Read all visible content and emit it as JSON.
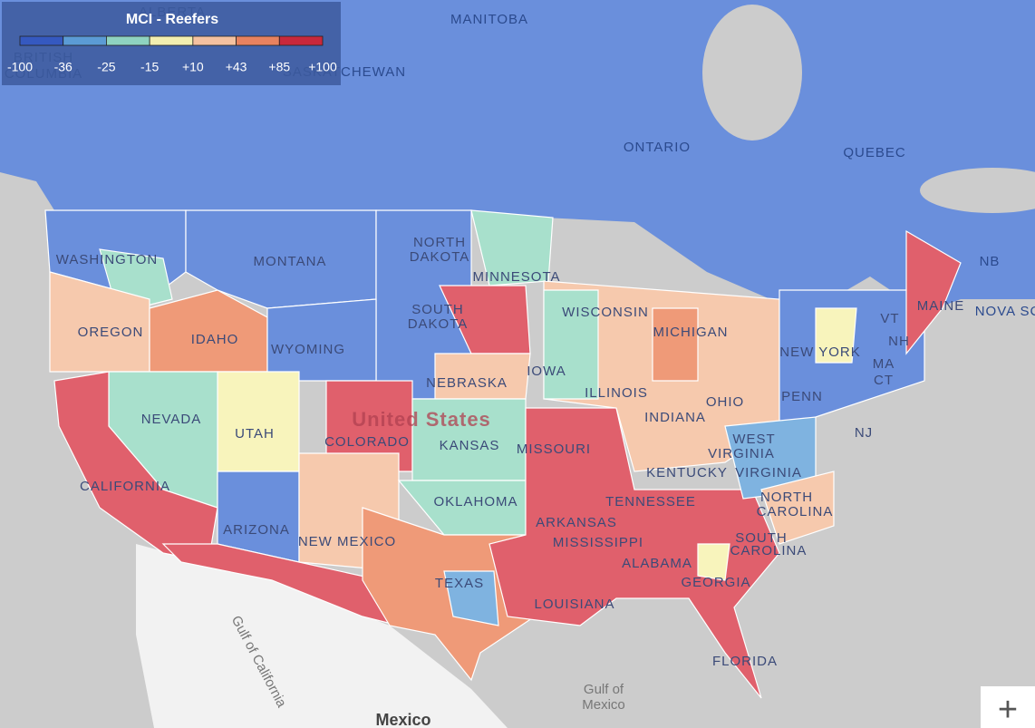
{
  "legend": {
    "title": "MCI - Reefers",
    "stops": [
      "-100",
      "-36",
      "-25",
      "-15",
      "+10",
      "+43",
      "+85",
      "+100"
    ],
    "colors": [
      "#3559c0",
      "#5b9bd5",
      "#8fd3c0",
      "#f3efb0",
      "#f4c1a0",
      "#e8825f",
      "#c9283b"
    ]
  },
  "map": {
    "labels": [
      "ALBERTA",
      "MANITOBA",
      "SASKATCHEWAN",
      "BRITISH",
      "COLUMBIA",
      "ONTARIO",
      "QUEBEC",
      "NB",
      "NOVA SC",
      "WASHINGTON",
      "MONTANA",
      "NORTH",
      "DAKOTA",
      "MINNESOTA",
      "SOUTH",
      "DAKOTA",
      "OREGON",
      "IDAHO",
      "WISCONSIN",
      "MICHIGAN",
      "WYOMING",
      "NEW YORK",
      "MAINE",
      "VT",
      "NH",
      "MA",
      "CT",
      "NEBRASKA",
      "IOWA",
      "ILLINOIS",
      "PENN",
      "OHIO",
      "INDIANA",
      "NJ",
      "NEVADA",
      "UTAH",
      "COLORADO",
      "KANSAS",
      "MISSOURI",
      "WEST",
      "VIRGINIA",
      "KENTUCKY",
      "VIRGINIA",
      "CALIFORNIA",
      "OKLAHOMA",
      "TENNESSEE",
      "NORTH",
      "CAROLINA",
      "ARKANSAS",
      "SOUTH",
      "CAROLINA",
      "ARIZONA",
      "NEW MEXICO",
      "MISSISSIPPI",
      "ALABAMA",
      "GEORGIA",
      "TEXAS",
      "LOUISIANA",
      "FLORIDA",
      "United States",
      "Gulf of",
      "Mexico",
      "Mexico",
      "Gulf of California"
    ]
  },
  "controls": {
    "zoom_in": "+"
  }
}
